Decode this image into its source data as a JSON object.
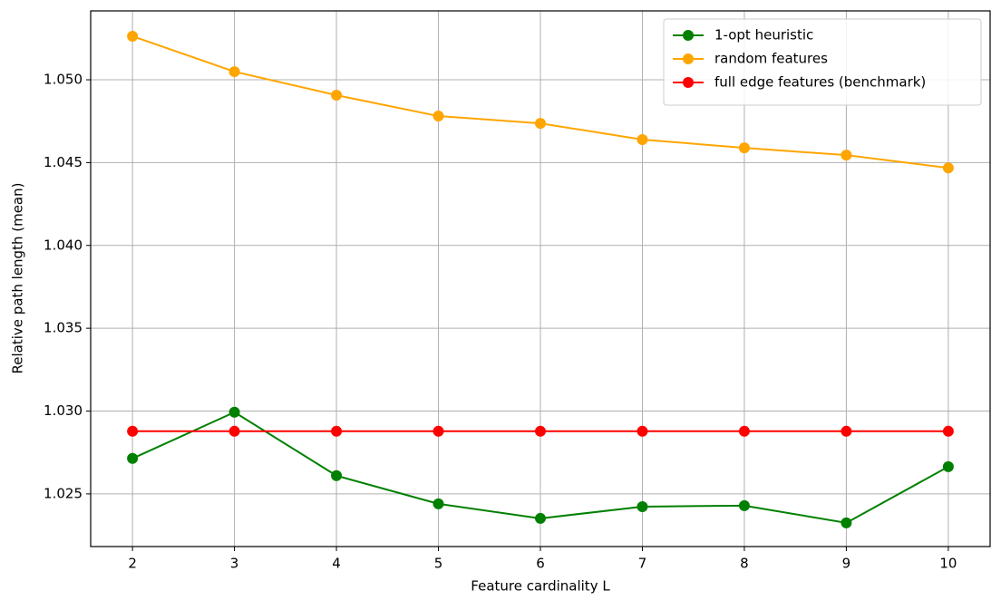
{
  "chart_data": {
    "type": "line",
    "xlabel": "Feature cardinality L",
    "ylabel": "Relative path length (mean)",
    "x": [
      2,
      3,
      4,
      5,
      6,
      7,
      8,
      9,
      10
    ],
    "series": [
      {
        "name": "1-opt heuristic",
        "color": "#008000",
        "values": [
          1.02714,
          1.02993,
          1.0261,
          1.0244,
          1.02352,
          1.02423,
          1.02429,
          1.02325,
          1.02664
        ]
      },
      {
        "name": "random features",
        "color": "#ffa500",
        "values": [
          1.05263,
          1.05049,
          1.04907,
          1.04781,
          1.04737,
          1.04639,
          1.04589,
          1.04545,
          1.04468
        ]
      },
      {
        "name": "full edge features (benchmark)",
        "color": "#ff0000",
        "values": [
          1.02878,
          1.02878,
          1.02878,
          1.02878,
          1.02878,
          1.02878,
          1.02878,
          1.02878,
          1.02878
        ]
      }
    ],
    "xlim": [
      1.59,
      10.41
    ],
    "ylim": [
      1.02182,
      1.05416
    ],
    "xticks": [
      2,
      3,
      4,
      5,
      6,
      7,
      8,
      9,
      10
    ],
    "yticks": [
      1.025,
      {
        "value": 1.03,
        "label": "1.030"
      },
      1.035,
      {
        "value": 1.04,
        "label": "1.040"
      },
      1.045,
      {
        "value": 1.05,
        "label": "1.050"
      }
    ],
    "grid": true,
    "legend": "upper right"
  }
}
